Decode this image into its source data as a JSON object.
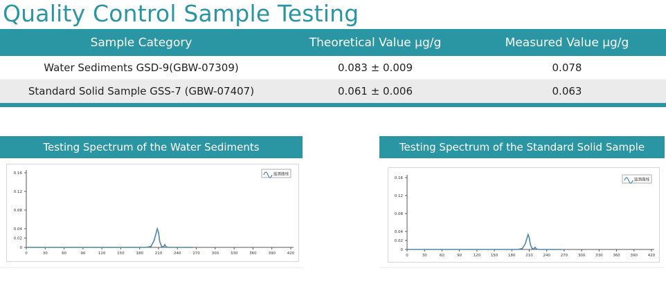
{
  "title": "Quality Control Sample Testing",
  "table": {
    "headers": [
      "Sample Category",
      "Theoretical Value μg/g",
      "Measured Value μg/g"
    ],
    "rows": [
      [
        "Water Sediments GSD-9(GBW-07309)",
        "0.083 ± 0.009",
        "0.078"
      ],
      [
        "Standard Solid Sample GSS-7 (GBW-07407)",
        "0.061 ± 0.006",
        "0.063"
      ]
    ]
  },
  "panels": [
    {
      "title": "Testing Spectrum of the Water Sediments",
      "legend": "监测曲线"
    },
    {
      "title": "Testing Spectrum of the Standard Solid Sample",
      "legend": "监测曲线"
    }
  ],
  "colors": {
    "accent": "#2a95a3",
    "curve": "#4a87a8"
  },
  "chart_data": [
    {
      "type": "line",
      "x_ticks": [
        "0",
        "30",
        "60",
        "90",
        "120",
        "150",
        "180",
        "210",
        "240",
        "270",
        "300",
        "330",
        "360",
        "390",
        "420"
      ],
      "y_ticks": [
        "0",
        "0.02",
        "0.04",
        "0.08",
        "0.12",
        "0.16"
      ],
      "xlim": [
        0,
        420
      ],
      "ylim": [
        0,
        0.16
      ],
      "series": [
        {
          "values": [
            [
              0,
              0
            ],
            [
              150,
              0
            ],
            [
              190,
              0
            ],
            [
              198,
              0.002
            ],
            [
              203,
              0.015
            ],
            [
              206,
              0.03
            ],
            [
              208,
              0.04
            ],
            [
              210,
              0.032
            ],
            [
              212,
              0.012
            ],
            [
              215,
              0.002
            ],
            [
              218,
              0.001
            ],
            [
              220,
              0.006
            ],
            [
              222,
              0.001
            ],
            [
              226,
              0
            ],
            [
              250,
              0
            ],
            [
              265,
              0
            ]
          ]
        }
      ]
    },
    {
      "type": "line",
      "x_ticks": [
        "0",
        "30",
        "60",
        "90",
        "120",
        "150",
        "180",
        "210",
        "240",
        "270",
        "300",
        "330",
        "360",
        "390",
        "420"
      ],
      "y_ticks": [
        "0",
        "0.02",
        "0.04",
        "0.08",
        "0.12",
        "0.16"
      ],
      "xlim": [
        0,
        420
      ],
      "ylim": [
        0,
        0.16
      ],
      "series": [
        {
          "values": [
            [
              0,
              0
            ],
            [
              150,
              0
            ],
            [
              190,
              0
            ],
            [
              198,
              0.002
            ],
            [
              203,
              0.012
            ],
            [
              206,
              0.025
            ],
            [
              208,
              0.033
            ],
            [
              210,
              0.026
            ],
            [
              212,
              0.01
            ],
            [
              215,
              0.002
            ],
            [
              218,
              0.001
            ],
            [
              220,
              0.005
            ],
            [
              222,
              0.001
            ],
            [
              226,
              0
            ],
            [
              250,
              0
            ],
            [
              265,
              0
            ]
          ]
        }
      ]
    }
  ]
}
